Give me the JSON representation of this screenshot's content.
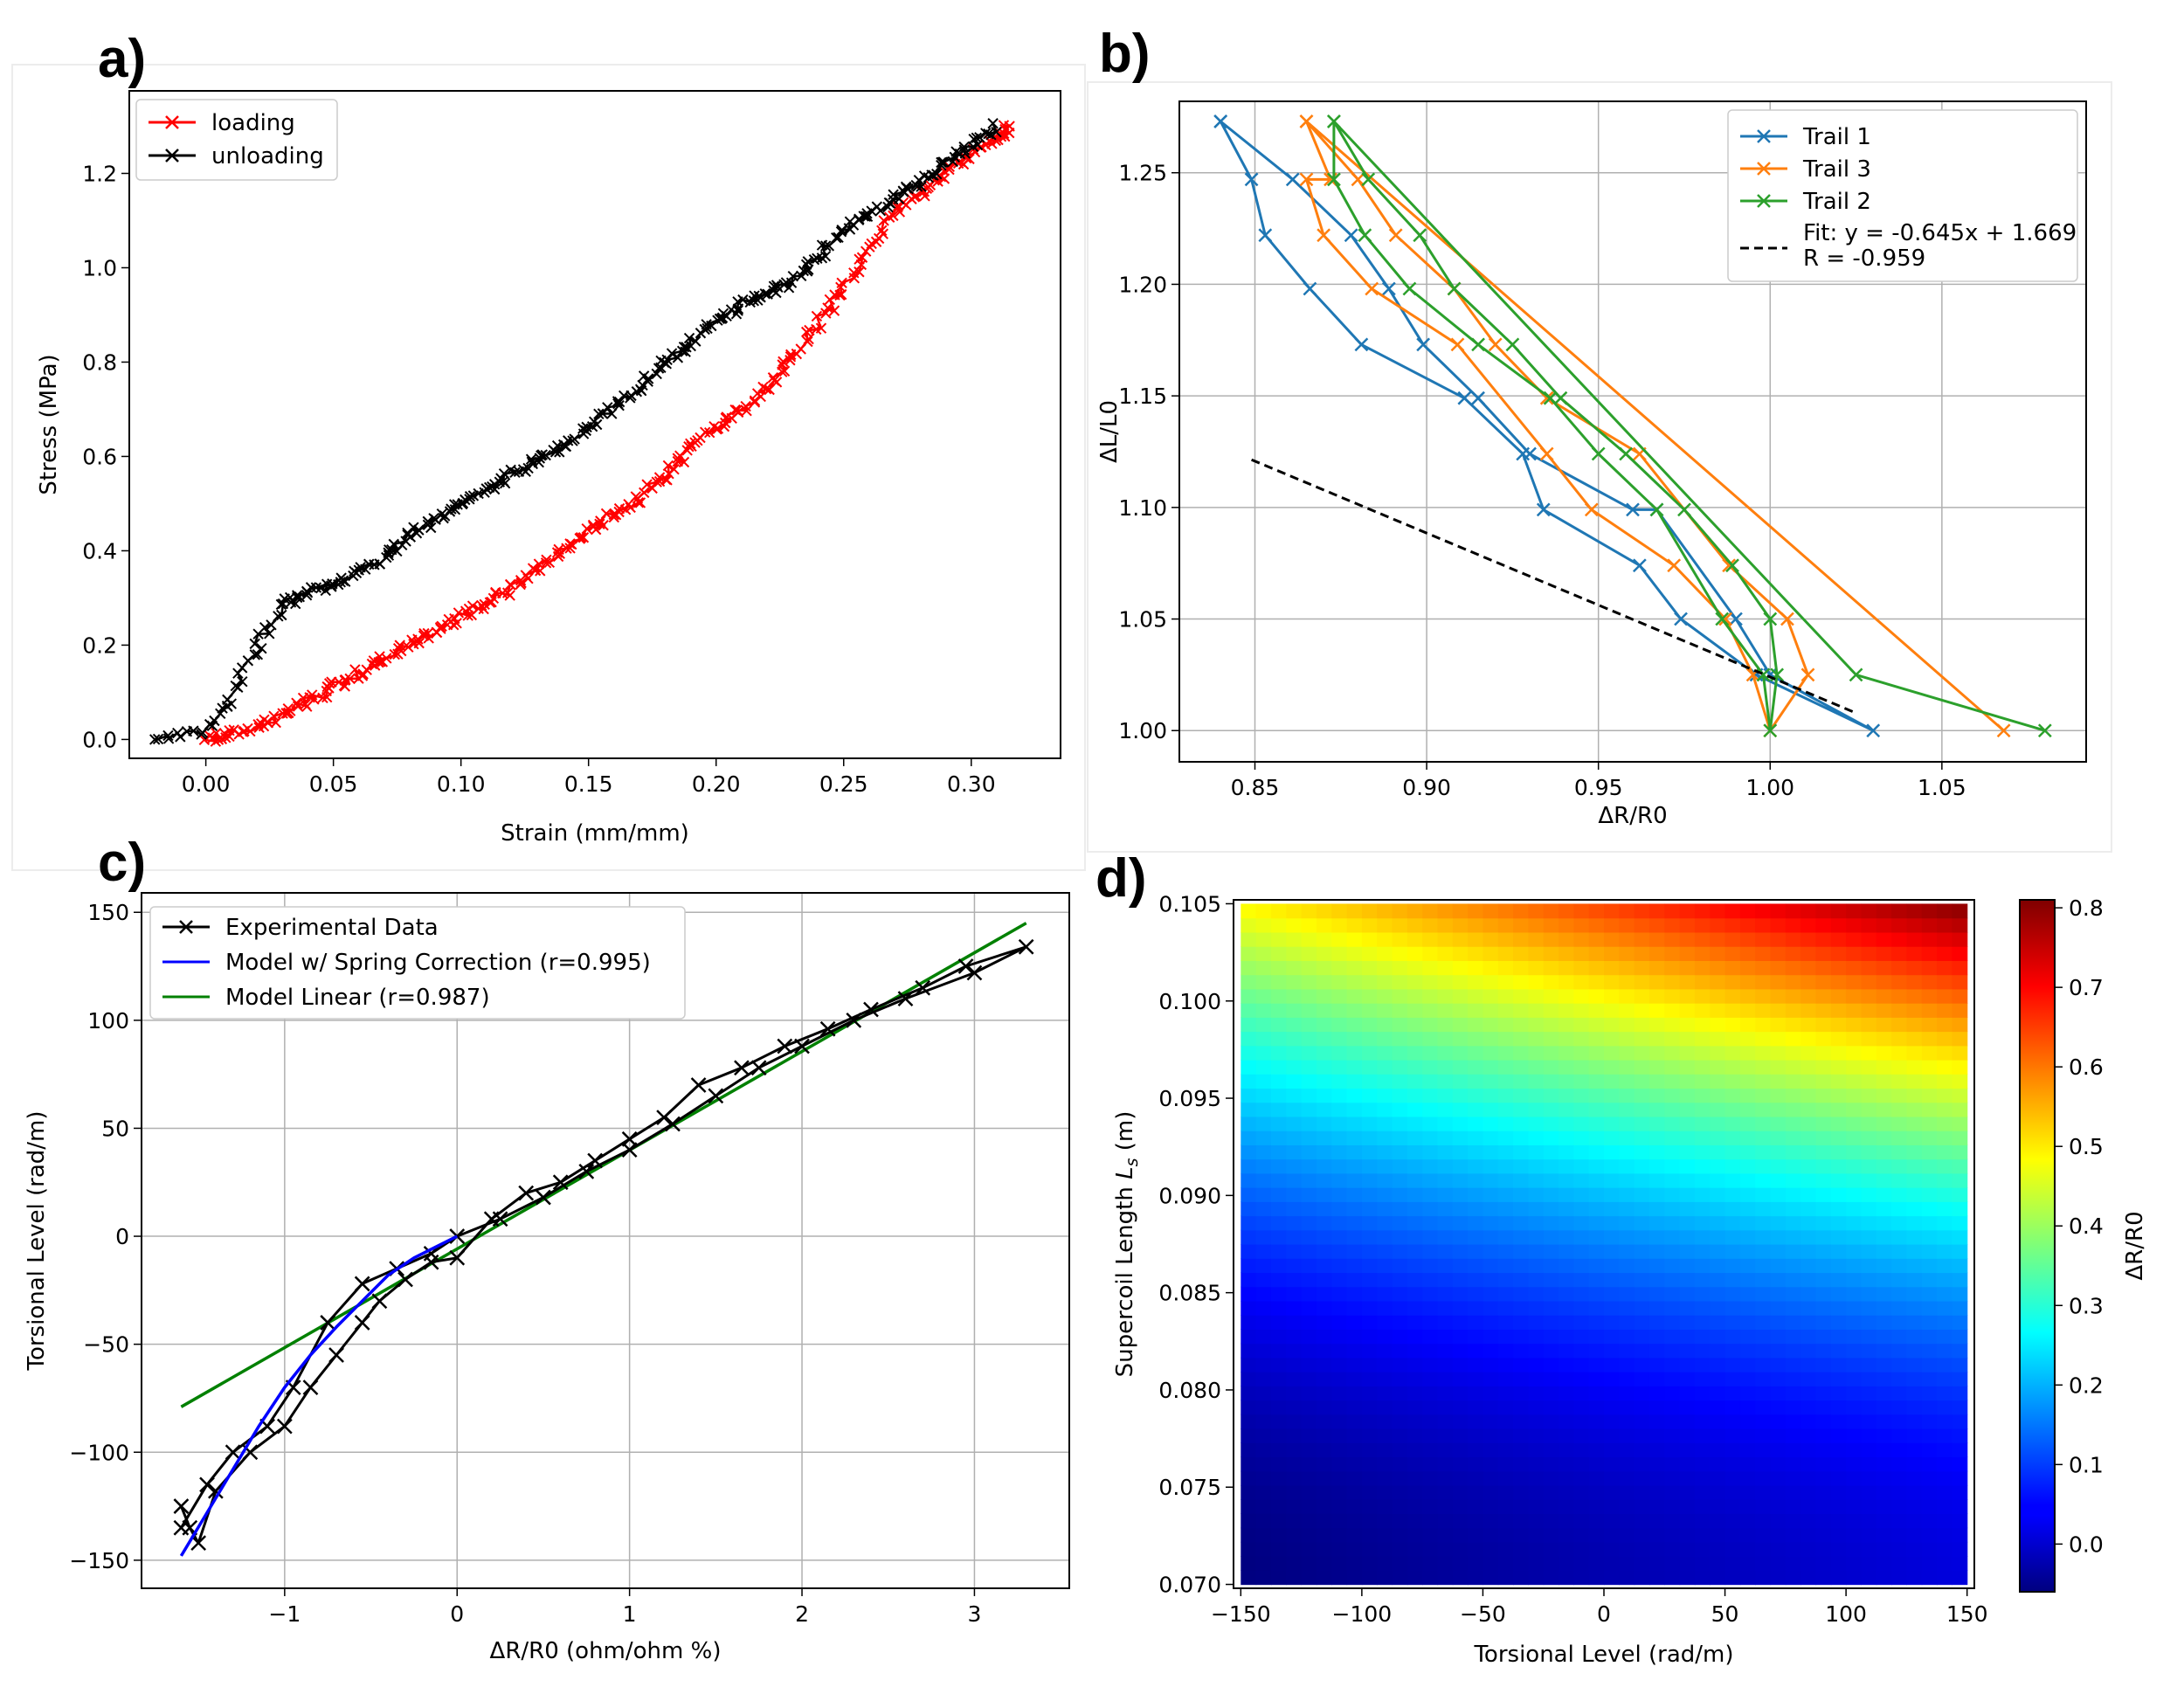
{
  "figure": {
    "panel_letters": [
      "a)",
      "b)",
      "c)",
      "d)"
    ]
  },
  "chart_data": [
    {
      "panel": "a)",
      "type": "line",
      "xlabel": "Strain (mm/mm)",
      "ylabel": "Stress (MPa)",
      "xlim": [
        -0.03,
        0.335
      ],
      "ylim": [
        -0.04,
        1.375
      ],
      "xticks": [
        0.0,
        0.05,
        0.1,
        0.15,
        0.2,
        0.25,
        0.3
      ],
      "xtick_labels": [
        "0.00",
        "0.05",
        "0.10",
        "0.15",
        "0.20",
        "0.25",
        "0.30"
      ],
      "yticks": [
        0.0,
        0.2,
        0.4,
        0.6,
        0.8,
        1.0,
        1.2
      ],
      "ytick_labels": [
        "0.0",
        "0.2",
        "0.4",
        "0.6",
        "0.8",
        "1.0",
        "1.2"
      ],
      "grid": false,
      "legend_position": "upper-left",
      "marker": "x",
      "series": [
        {
          "name": "loading",
          "color": "#ff0000",
          "x": [
            0.0,
            0.01,
            0.02,
            0.03,
            0.04,
            0.05,
            0.06,
            0.07,
            0.08,
            0.09,
            0.1,
            0.11,
            0.12,
            0.13,
            0.14,
            0.15,
            0.16,
            0.17,
            0.18,
            0.19,
            0.2,
            0.21,
            0.22,
            0.23,
            0.24,
            0.25,
            0.26,
            0.27,
            0.28,
            0.29,
            0.3,
            0.31,
            0.315
          ],
          "y": [
            0.0,
            0.01,
            0.03,
            0.05,
            0.08,
            0.11,
            0.14,
            0.17,
            0.2,
            0.23,
            0.26,
            0.29,
            0.32,
            0.36,
            0.4,
            0.44,
            0.48,
            0.51,
            0.56,
            0.62,
            0.66,
            0.7,
            0.75,
            0.81,
            0.88,
            0.96,
            1.04,
            1.12,
            1.16,
            1.2,
            1.24,
            1.27,
            1.3
          ]
        },
        {
          "name": "unloading",
          "color": "#000000",
          "x": [
            0.31,
            0.3,
            0.29,
            0.28,
            0.27,
            0.26,
            0.25,
            0.24,
            0.23,
            0.22,
            0.21,
            0.2,
            0.19,
            0.18,
            0.17,
            0.16,
            0.15,
            0.14,
            0.13,
            0.12,
            0.11,
            0.1,
            0.09,
            0.08,
            0.07,
            0.06,
            0.05,
            0.04,
            0.03,
            0.02,
            0.01,
            0.0,
            -0.02
          ],
          "y": [
            1.3,
            1.26,
            1.22,
            1.18,
            1.15,
            1.11,
            1.08,
            1.02,
            0.97,
            0.95,
            0.92,
            0.89,
            0.84,
            0.8,
            0.75,
            0.71,
            0.66,
            0.62,
            0.59,
            0.56,
            0.53,
            0.5,
            0.47,
            0.43,
            0.39,
            0.35,
            0.33,
            0.31,
            0.29,
            0.2,
            0.09,
            0.02,
            0.0
          ]
        }
      ]
    },
    {
      "panel": "b)",
      "type": "line",
      "xlabel": "ΔR/R0",
      "ylabel": "ΔL/L0",
      "xlim": [
        0.828,
        1.092
      ],
      "ylim": [
        0.986,
        1.282
      ],
      "xticks": [
        0.85,
        0.9,
        0.95,
        1.0,
        1.05
      ],
      "xtick_labels": [
        "0.85",
        "0.90",
        "0.95",
        "1.00",
        "1.05"
      ],
      "yticks": [
        1.0,
        1.05,
        1.1,
        1.15,
        1.2,
        1.25
      ],
      "ytick_labels": [
        "1.00",
        "1.05",
        "1.10",
        "1.15",
        "1.20",
        "1.25"
      ],
      "grid": true,
      "legend_position": "upper-right",
      "marker": "x",
      "series": [
        {
          "name": "Trail 1",
          "color": "#1f77b4",
          "x": [
            0.84,
            0.849,
            0.853,
            0.866,
            0.881,
            0.911,
            0.928,
            0.934,
            0.962,
            0.974,
            0.996,
            1.0,
            1.03
          ],
          "y": [
            1.273,
            1.247,
            1.222,
            1.198,
            1.173,
            1.149,
            1.124,
            1.099,
            1.074,
            1.05,
            1.025,
            1.0,
            1.0
          ],
          "curve": [
            [
              0.84,
              1.273
            ],
            [
              0.849,
              1.247
            ],
            [
              0.853,
              1.222
            ],
            [
              0.866,
              1.198
            ],
            [
              0.881,
              1.173
            ],
            [
              0.911,
              1.149
            ],
            [
              0.928,
              1.124
            ],
            [
              0.934,
              1.099
            ],
            [
              0.962,
              1.074
            ],
            [
              0.974,
              1.05
            ],
            [
              0.996,
              1.025
            ],
            [
              1.03,
              1.0
            ],
            [
              1.0,
              1.025
            ],
            [
              0.99,
              1.05
            ],
            [
              0.967,
              1.099
            ],
            [
              0.96,
              1.099
            ],
            [
              0.93,
              1.124
            ],
            [
              0.915,
              1.149
            ],
            [
              0.899,
              1.173
            ],
            [
              0.889,
              1.198
            ],
            [
              0.878,
              1.222
            ],
            [
              0.861,
              1.247
            ],
            [
              0.84,
              1.273
            ]
          ]
        },
        {
          "name": "Trail 3",
          "color": "#ff7f0e",
          "x": [
            0.865,
            0.87,
            0.884,
            0.909,
            0.935,
            0.948,
            0.972,
            0.987,
            0.995,
            1.011,
            1.068
          ],
          "y": [
            1.273,
            1.222,
            1.198,
            1.173,
            1.124,
            1.099,
            1.074,
            1.05,
            1.025,
            1.025,
            1.0
          ],
          "curve": [
            [
              0.865,
              1.273
            ],
            [
              0.872,
              1.247
            ],
            [
              0.865,
              1.247
            ],
            [
              0.87,
              1.222
            ],
            [
              0.884,
              1.198
            ],
            [
              0.909,
              1.173
            ],
            [
              0.935,
              1.124
            ],
            [
              0.948,
              1.099
            ],
            [
              0.972,
              1.074
            ],
            [
              0.987,
              1.05
            ],
            [
              0.995,
              1.025
            ],
            [
              1.0,
              1.0
            ],
            [
              1.011,
              1.025
            ],
            [
              1.005,
              1.05
            ],
            [
              0.988,
              1.074
            ],
            [
              0.962,
              1.124
            ],
            [
              0.935,
              1.149
            ],
            [
              0.92,
              1.173
            ],
            [
              0.908,
              1.198
            ],
            [
              0.891,
              1.222
            ],
            [
              0.88,
              1.247
            ],
            [
              0.865,
              1.273
            ],
            [
              1.068,
              1.0
            ]
          ]
        },
        {
          "name": "Trail 2",
          "color": "#2ca02c",
          "x": [
            0.873,
            0.883,
            0.898,
            0.916,
            0.939,
            0.958,
            0.975,
            0.989,
            1.002,
            1.025,
            1.08
          ],
          "y": [
            1.273,
            1.247,
            1.222,
            1.198,
            1.149,
            1.124,
            1.099,
            1.074,
            1.025,
            1.025,
            1.0
          ],
          "curve": [
            [
              0.873,
              1.273
            ],
            [
              0.883,
              1.247
            ],
            [
              0.898,
              1.222
            ],
            [
              0.908,
              1.198
            ],
            [
              0.925,
              1.173
            ],
            [
              0.939,
              1.149
            ],
            [
              0.958,
              1.124
            ],
            [
              0.975,
              1.099
            ],
            [
              0.989,
              1.074
            ],
            [
              1.0,
              1.05
            ],
            [
              1.002,
              1.025
            ],
            [
              1.0,
              1.0
            ],
            [
              0.998,
              1.025
            ],
            [
              0.986,
              1.05
            ],
            [
              0.967,
              1.099
            ],
            [
              0.95,
              1.124
            ],
            [
              0.936,
              1.149
            ],
            [
              0.915,
              1.173
            ],
            [
              0.895,
              1.198
            ],
            [
              0.882,
              1.222
            ],
            [
              0.873,
              1.247
            ],
            [
              0.873,
              1.273
            ],
            [
              1.025,
              1.025
            ],
            [
              1.08,
              1.0
            ]
          ]
        }
      ],
      "fit": {
        "label_line1": "Fit: y = -0.645x + 1.669",
        "label_line2": "R = -0.959",
        "slope": -0.645,
        "intercept": 1.669,
        "x_range": [
          0.849,
          1.025
        ],
        "color": "#000000",
        "style": "dashed"
      }
    },
    {
      "panel": "c)",
      "type": "line",
      "xlabel": "ΔR/R0 (ohm/ohm %)",
      "ylabel": "Torsional Level (rad/m)",
      "xlim": [
        -1.83,
        3.55
      ],
      "ylim": [
        -163,
        159
      ],
      "xticks": [
        -1,
        0,
        1,
        2,
        3
      ],
      "xtick_labels": [
        "−1",
        "0",
        "1",
        "2",
        "3"
      ],
      "yticks": [
        -150,
        -100,
        -50,
        0,
        50,
        100,
        150
      ],
      "ytick_labels": [
        "−150",
        "−100",
        "−50",
        "0",
        "50",
        "100",
        "150"
      ],
      "grid": true,
      "legend_position": "upper-left",
      "series": [
        {
          "name": "Experimental Data",
          "color": "#000000",
          "marker": "x",
          "x": [
            -1.6,
            -1.55,
            -1.5,
            -1.4,
            -1.2,
            -1.0,
            -0.85,
            -0.7,
            -0.55,
            -0.45,
            -0.3,
            -0.15,
            0.0,
            0.2,
            0.4,
            0.6,
            0.8,
            1.0,
            1.2,
            1.4,
            1.65,
            1.9,
            2.15,
            2.4,
            2.7,
            2.95,
            3.3,
            3.0,
            2.6,
            2.3,
            2.0,
            1.75,
            1.5,
            1.25,
            1.0,
            0.75,
            0.5,
            0.25,
            0.0,
            -0.15,
            -0.35,
            -0.55,
            -0.75,
            -0.95,
            -1.1,
            -1.3,
            -1.45,
            -1.6
          ],
          "y": [
            -125,
            -135,
            -142,
            -118,
            -100,
            -88,
            -70,
            -55,
            -40,
            -30,
            -20,
            -12,
            -10,
            8,
            20,
            25,
            35,
            45,
            55,
            70,
            78,
            88,
            96,
            105,
            115,
            125,
            134,
            122,
            110,
            100,
            88,
            78,
            65,
            52,
            40,
            30,
            18,
            8,
            0,
            -8,
            -15,
            -22,
            -40,
            -70,
            -88,
            -100,
            -115,
            -135
          ]
        },
        {
          "name": "Model w/ Spring Correction (r=0.995)",
          "color": "#0000ff",
          "x": [
            -1.6,
            -1.45,
            -1.3,
            -1.15,
            -1.0,
            -0.85,
            -0.7,
            -0.55,
            -0.4,
            -0.25,
            -0.1,
            0.0
          ],
          "y": [
            -148,
            -128,
            -108,
            -88,
            -70,
            -55,
            -42,
            -30,
            -18,
            -10,
            -4,
            0
          ]
        },
        {
          "name": "Model Linear (r=0.987)",
          "color": "#008000",
          "x": [
            -1.6,
            3.3
          ],
          "y": [
            -79,
            145
          ]
        }
      ]
    },
    {
      "panel": "d)",
      "type": "heatmap",
      "xlabel": "Torsional Level (rad/m)",
      "ylabel": "Supercoil Length L_s (m)",
      "ylabel_main": "Supercoil Length ",
      "ylabel_symbol": "L",
      "ylabel_subscript": "s",
      "ylabel_unit": " (m)",
      "colorbar_label": "ΔR/R0",
      "colormap": "jet",
      "xlim": [
        -153,
        153
      ],
      "ylim": [
        0.0698,
        0.1052
      ],
      "xticks": [
        -150,
        -100,
        -50,
        0,
        50,
        100,
        150
      ],
      "xtick_labels": [
        "−150",
        "−100",
        "−50",
        "0",
        "50",
        "100",
        "150"
      ],
      "yticks": [
        0.07,
        0.075,
        0.08,
        0.085,
        0.09,
        0.095,
        0.1,
        0.105
      ],
      "ytick_labels": [
        "0.070",
        "0.075",
        "0.080",
        "0.085",
        "0.090",
        "0.095",
        "0.100",
        "0.105"
      ],
      "color_range": [
        -0.06,
        0.81
      ],
      "colorbar_ticks": [
        0.0,
        0.1,
        0.2,
        0.3,
        0.4,
        0.5,
        0.6,
        0.7,
        0.8
      ],
      "colorbar_tick_labels": [
        "0.0",
        "0.1",
        "0.2",
        "0.3",
        "0.4",
        "0.5",
        "0.6",
        "0.7",
        "0.8"
      ],
      "corner_values": {
        "x_-150_y_0.070": -0.06,
        "x_150_y_0.070": 0.02,
        "x_-150_y_0.105": 0.49,
        "x_150_y_0.105": 0.81
      }
    }
  ]
}
